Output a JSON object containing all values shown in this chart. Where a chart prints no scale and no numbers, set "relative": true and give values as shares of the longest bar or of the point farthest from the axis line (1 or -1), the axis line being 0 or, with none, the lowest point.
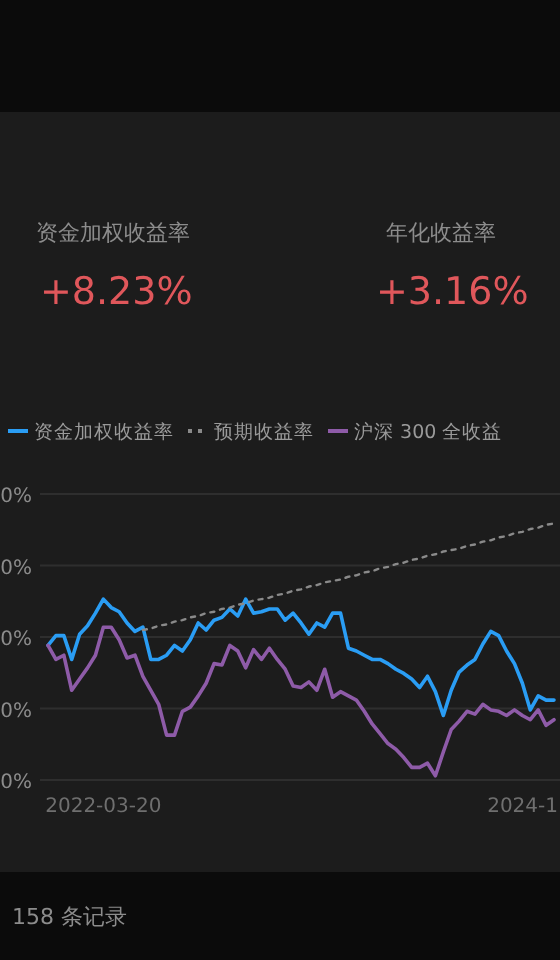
{
  "chart_data": {
    "type": "line",
    "relative": true,
    "grid": "y",
    "legend": "top",
    "categories": [
      null,
      null,
      null,
      null,
      null,
      null,
      null,
      "2022-03-20",
      null,
      null,
      null,
      null,
      null,
      null,
      null,
      null,
      null,
      null,
      null,
      null,
      null,
      null,
      null,
      null,
      null,
      null,
      null,
      null,
      null,
      null,
      null,
      null,
      null,
      null,
      null,
      null,
      null,
      null,
      null,
      null,
      null,
      null,
      null,
      null,
      null,
      null,
      null,
      null,
      null,
      null,
      null,
      null,
      null,
      null,
      null,
      null,
      null,
      null,
      null,
      null,
      "2024-1",
      null,
      null,
      null,
      null
    ],
    "series": [
      {
        "name": "资金加权收益率",
        "color": "#2a9df4",
        "line_style": "solid",
        "values": [
          -0.07,
          0,
          0,
          -0.17,
          0.01,
          0.07,
          0.16,
          0.26,
          0.2,
          0.17,
          0.09,
          0.03,
          0.06,
          -0.17,
          -0.17,
          -0.14,
          -0.07,
          -0.11,
          -0.03,
          0.09,
          0.04,
          0.11,
          0.13,
          0.19,
          0.14,
          0.26,
          0.16,
          0.17,
          0.19,
          0.19,
          0.11,
          0.16,
          0.09,
          0.01,
          0.09,
          0.06,
          0.16,
          0.16,
          -0.09,
          -0.11,
          -0.14,
          -0.17,
          -0.17,
          -0.2,
          -0.24,
          -0.27,
          -0.31,
          -0.37,
          -0.29,
          -0.4,
          -0.57,
          -0.39,
          -0.26,
          -0.21,
          -0.17,
          -0.06,
          0.03,
          0,
          -0.11,
          -0.2,
          -0.34,
          -0.53,
          -0.43,
          -0.46,
          -0.46
        ]
      },
      {
        "name": "预期收益率",
        "color": "#8a8a8a",
        "line_style": "dotted",
        "values": [
          null,
          null,
          null,
          null,
          null,
          null,
          null,
          null,
          null,
          null,
          null,
          null,
          0.04,
          0.05,
          0.07,
          0.08,
          0.1,
          0.11,
          0.13,
          0.14,
          0.16,
          0.17,
          0.19,
          0.2,
          0.22,
          0.23,
          0.25,
          0.26,
          0.27,
          0.29,
          0.3,
          0.32,
          0.33,
          0.35,
          0.36,
          0.38,
          0.39,
          0.4,
          0.42,
          0.43,
          0.45,
          0.46,
          0.48,
          0.49,
          0.51,
          0.52,
          0.54,
          0.55,
          0.57,
          0.58,
          0.6,
          0.61,
          0.62,
          0.64,
          0.65,
          0.67,
          0.68,
          0.7,
          0.71,
          0.73,
          0.74,
          0.76,
          0.77,
          0.79,
          0.8
        ]
      },
      {
        "name": "沪深 300 全收益",
        "color": "#8e5ba8",
        "line_style": "solid",
        "values": [
          -0.07,
          -0.17,
          -0.14,
          -0.39,
          -0.31,
          -0.23,
          -0.14,
          0.06,
          0.06,
          -0.03,
          -0.16,
          -0.14,
          -0.29,
          -0.39,
          -0.49,
          -0.71,
          -0.71,
          -0.54,
          -0.51,
          -0.43,
          -0.34,
          -0.2,
          -0.21,
          -0.07,
          -0.11,
          -0.23,
          -0.1,
          -0.17,
          -0.09,
          -0.17,
          -0.24,
          -0.36,
          -0.37,
          -0.33,
          -0.39,
          -0.24,
          -0.44,
          -0.4,
          -0.43,
          -0.46,
          -0.54,
          -0.63,
          -0.7,
          -0.77,
          -0.81,
          -0.87,
          -0.94,
          -0.94,
          -0.91,
          -1,
          -0.83,
          -0.67,
          -0.61,
          -0.54,
          -0.56,
          -0.49,
          -0.53,
          -0.54,
          -0.57,
          -0.53,
          -0.57,
          -0.6,
          -0.53,
          -0.64,
          -0.6
        ]
      }
    ],
    "annotations": [
      "资金加权收益率",
      "+8.23%",
      "年化收益率",
      "+3.16%",
      "0%",
      "0%",
      "0%",
      "0%",
      "0%",
      "158 条记录"
    ]
  }
}
